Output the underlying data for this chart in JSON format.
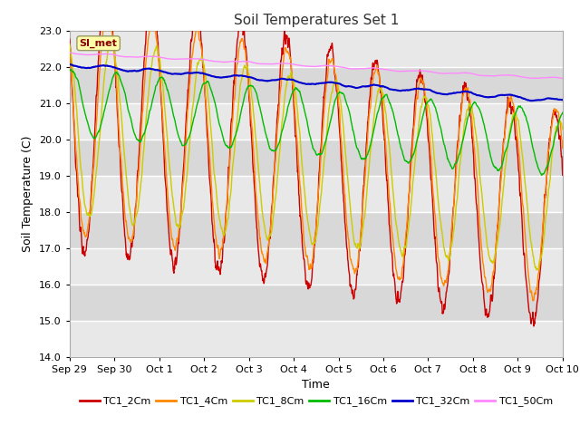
{
  "title": "Soil Temperatures Set 1",
  "xlabel": "Time",
  "ylabel": "Soil Temperature (C)",
  "ylim": [
    14.0,
    23.0
  ],
  "yticks": [
    14.0,
    15.0,
    16.0,
    17.0,
    18.0,
    19.0,
    20.0,
    21.0,
    22.0,
    23.0
  ],
  "series_colors": {
    "TC1_2Cm": "#cc0000",
    "TC1_4Cm": "#ff8800",
    "TC1_8Cm": "#cccc00",
    "TC1_16Cm": "#00bb00",
    "TC1_32Cm": "#0000cc",
    "TC1_50Cm": "#ff88ff"
  },
  "legend_label": "SI_met",
  "background_color": "#ffffff",
  "plot_bg_stripes": [
    "#e8e8e8",
    "#d4d4d4"
  ],
  "grid_color": "#ffffff",
  "figsize": [
    6.4,
    4.8
  ],
  "dpi": 100
}
